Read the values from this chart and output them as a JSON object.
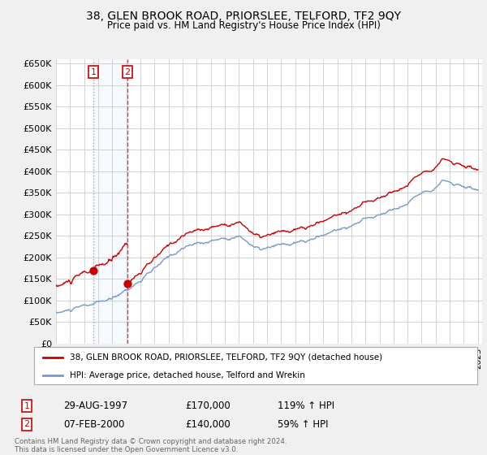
{
  "title": "38, GLEN BROOK ROAD, PRIORSLEE, TELFORD, TF2 9QY",
  "subtitle": "Price paid vs. HM Land Registry's House Price Index (HPI)",
  "legend_line1": "38, GLEN BROOK ROAD, PRIORSLEE, TELFORD, TF2 9QY (detached house)",
  "legend_line2": "HPI: Average price, detached house, Telford and Wrekin",
  "sale1_date": "29-AUG-1997",
  "sale1_price": 170000,
  "sale1_hpi": "119% ↑ HPI",
  "sale2_date": "07-FEB-2000",
  "sale2_price": 140000,
  "sale2_hpi": "59% ↑ HPI",
  "footnote": "Contains HM Land Registry data © Crown copyright and database right 2024.\nThis data is licensed under the Open Government Licence v3.0.",
  "ylim": [
    0,
    660000
  ],
  "yticks": [
    0,
    50000,
    100000,
    150000,
    200000,
    250000,
    300000,
    350000,
    400000,
    450000,
    500000,
    550000,
    600000,
    650000
  ],
  "background_color": "#f0f0f0",
  "plot_bg_color": "#ffffff",
  "grid_color": "#cccccc",
  "hpi_line_color": "#7799cc",
  "price_line_color": "#cc0000",
  "sale1_x": 1997.65,
  "sale2_x": 2000.08
}
